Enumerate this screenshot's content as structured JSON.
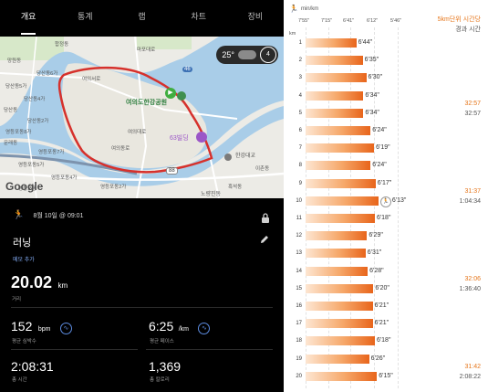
{
  "tabs": [
    "개요",
    "통계",
    "랩",
    "차트",
    "장비"
  ],
  "map": {
    "weather_temp": "25°",
    "weather_badge": "4",
    "place_park": "여의도한강공원",
    "place_63": "63빌딩",
    "place_bridge": "한강대교",
    "place_noryang": "노량진동",
    "google": "Google",
    "labels": [
      "망원동",
      "합정동",
      "당산동6가",
      "당산동5가",
      "당산동4가",
      "당산동2가",
      "당산동",
      "영등포동8가",
      "영등포동7가",
      "영등포동5가",
      "영등포동",
      "영등포동4가",
      "영등포동2가",
      "영등포동1가",
      "문래동",
      "여의서로",
      "여의대로",
      "여의동로",
      "마포대로",
      "이촌동",
      "흑석동"
    ],
    "road_nums": [
      "46",
      "88"
    ]
  },
  "activity": {
    "date": "8월 10일 @ 09:01",
    "title": "러닝",
    "memo": "메모 추가",
    "distance_value": "20.02",
    "distance_unit": "km",
    "distance_label": "거리",
    "hr_value": "152",
    "hr_unit": "bpm",
    "hr_label": "평균 심박수",
    "pace_value": "6:25",
    "pace_unit": "/km",
    "pace_label": "평균 페이스",
    "time_value": "2:08:31",
    "time_label": "총 시간",
    "cal_value": "1,369",
    "cal_label": "총 칼로리"
  },
  "splits": {
    "unit_label": "min/km",
    "axis_label": "km",
    "header_orange": "5km단위 시간당",
    "header_gray": "경과 시간",
    "ticks": [
      "7'55\"",
      "7'15\"",
      "6'41\"",
      "6'12\"",
      "5'46\""
    ],
    "rows": [
      {
        "km": "1",
        "pace": "6'44\"",
        "sec": 404
      },
      {
        "km": "2",
        "pace": "6'35\"",
        "sec": 395
      },
      {
        "km": "3",
        "pace": "6'30\"",
        "sec": 390
      },
      {
        "km": "4",
        "pace": "6'34\"",
        "sec": 394
      },
      {
        "km": "5",
        "pace": "6'34\"",
        "sec": 394,
        "cum1": "32:57",
        "cum2": "32:57"
      },
      {
        "km": "6",
        "pace": "6'24\"",
        "sec": 384
      },
      {
        "km": "7",
        "pace": "6'19\"",
        "sec": 379
      },
      {
        "km": "8",
        "pace": "6'24\"",
        "sec": 384
      },
      {
        "km": "9",
        "pace": "6'17\"",
        "sec": 377
      },
      {
        "km": "10",
        "pace": "6'13\"",
        "sec": 373,
        "best": true,
        "cum1": "31:37",
        "cum2": "1:04:34"
      },
      {
        "km": "11",
        "pace": "6'18\"",
        "sec": 378
      },
      {
        "km": "12",
        "pace": "6'29\"",
        "sec": 389
      },
      {
        "km": "13",
        "pace": "6'31\"",
        "sec": 391
      },
      {
        "km": "14",
        "pace": "6'28\"",
        "sec": 388
      },
      {
        "km": "15",
        "pace": "6'20\"",
        "sec": 380,
        "cum1": "32:06",
        "cum2": "1:36:40"
      },
      {
        "km": "16",
        "pace": "6'21\"",
        "sec": 381
      },
      {
        "km": "17",
        "pace": "6'21\"",
        "sec": 381
      },
      {
        "km": "18",
        "pace": "6'18\"",
        "sec": 378
      },
      {
        "km": "19",
        "pace": "6'26\"",
        "sec": 386
      },
      {
        "km": "20",
        "pace": "6'15\"",
        "sec": 375,
        "cum1": "31:42",
        "cum2": "2:08:22"
      }
    ]
  },
  "colors": {
    "accent_orange": "#e6761b",
    "route_red": "#d6312c",
    "memo_blue": "#82aaf2",
    "river": "#a9cde8"
  }
}
